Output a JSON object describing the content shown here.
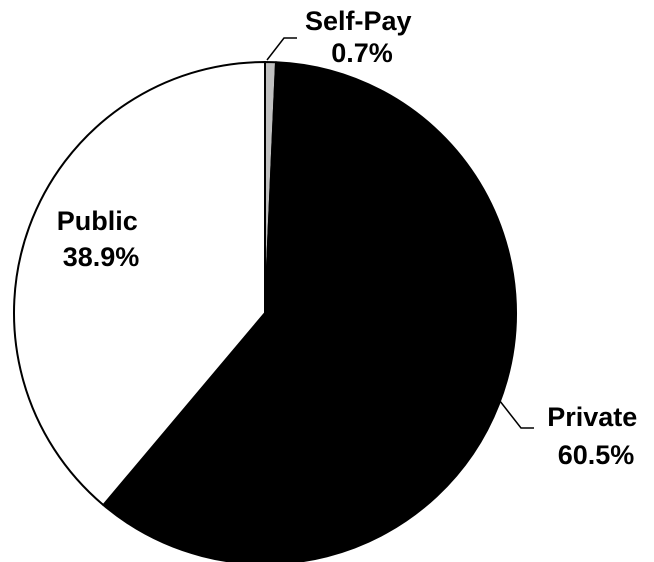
{
  "chart_data": {
    "type": "pie",
    "title": "",
    "slices": [
      {
        "label": "Self-Pay",
        "value": 0.7,
        "value_label": "0.7%",
        "color": "#c0c0c0"
      },
      {
        "label": "Private",
        "value": 60.5,
        "value_label": "60.5%",
        "color": "#000000"
      },
      {
        "label": "Public",
        "value": 38.9,
        "value_label": "38.9%",
        "color": "#ffffff"
      }
    ],
    "start_angle": "12 o'clock",
    "direction": "clockwise",
    "legend": "none"
  }
}
